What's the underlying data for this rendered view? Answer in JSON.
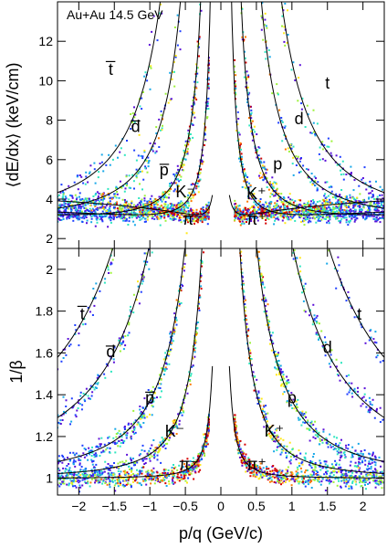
{
  "chart_data": [
    {
      "type": "heatmap",
      "title": "Au+Au 14.5 GeV",
      "xlabel": "p/q (GeV/c)",
      "ylabel": "⟨dE/dx⟩ (keV/cm)",
      "xlim": [
        -2.3,
        2.3
      ],
      "ylim": [
        1.5,
        14
      ],
      "xticks": [
        -2,
        -1.5,
        -1,
        -0.5,
        0,
        0.5,
        1,
        1.5,
        2
      ],
      "yticks": [
        2,
        4,
        6,
        8,
        10,
        12
      ],
      "xtick_labels": [],
      "ytick_labels": [
        "2",
        "4",
        "6",
        "8",
        "10",
        "12"
      ],
      "colormap": [
        "#5a10d8",
        "#1f3fff",
        "#17a8e8",
        "#2ee6c0",
        "#9cf23a",
        "#ffe81a",
        "#ff7a00",
        "#d40000"
      ],
      "band_color": "#000000",
      "bands": [
        {
          "name": "t",
          "mass": 2.809
        },
        {
          "name": "d",
          "mass": 1.876
        },
        {
          "name": "p",
          "mass": 0.938
        },
        {
          "name": "K",
          "mass": 0.494
        },
        {
          "name": "π",
          "mass": 0.14
        }
      ],
      "annotations": [
        {
          "text": "t̅",
          "x": -1.55,
          "y": 10.3
        },
        {
          "text": "d̅",
          "x": -1.2,
          "y": 7.4
        },
        {
          "text": "p̅",
          "x": -0.8,
          "y": 5.2
        },
        {
          "text": "K⁻",
          "x": -0.5,
          "y": 4.1
        },
        {
          "text": "π⁻",
          "x": -0.4,
          "y": 2.7
        },
        {
          "text": "t",
          "x": 1.5,
          "y": 9.6
        },
        {
          "text": "d",
          "x": 1.1,
          "y": 7.8
        },
        {
          "text": "p",
          "x": 0.8,
          "y": 5.5
        },
        {
          "text": "K⁺",
          "x": 0.5,
          "y": 4.0
        },
        {
          "text": "π⁺",
          "x": 0.5,
          "y": 2.7
        }
      ]
    },
    {
      "type": "heatmap",
      "xlabel": "p/q (GeV/c)",
      "ylabel": "1/β",
      "xlim": [
        -2.3,
        2.3
      ],
      "ylim": [
        0.92,
        2.1
      ],
      "xticks": [
        -2,
        -1.5,
        -1,
        -0.5,
        0,
        0.5,
        1,
        1.5,
        2
      ],
      "yticks": [
        1,
        1.2,
        1.4,
        1.6,
        1.8,
        2
      ],
      "xtick_labels": [
        "−2",
        "−1.5",
        "−1",
        "−0.5",
        "0",
        "0.5",
        "1",
        "1.5",
        "2"
      ],
      "ytick_labels": [
        "1",
        "1.2",
        "1.4",
        "1.6",
        "1.8",
        "2"
      ],
      "colormap": [
        "#5a10d8",
        "#1f3fff",
        "#17a8e8",
        "#2ee6c0",
        "#9cf23a",
        "#ffe81a",
        "#ff7a00",
        "#d40000"
      ],
      "band_color": "#000000",
      "bands": [
        {
          "name": "t",
          "mass": 2.809
        },
        {
          "name": "d",
          "mass": 1.876
        },
        {
          "name": "p",
          "mass": 0.938
        },
        {
          "name": "K",
          "mass": 0.494
        },
        {
          "name": "π",
          "mass": 0.14
        }
      ],
      "annotations": [
        {
          "text": "t̅",
          "x": -1.95,
          "y": 1.76
        },
        {
          "text": "d̅",
          "x": -1.55,
          "y": 1.58
        },
        {
          "text": "p̅",
          "x": -1.0,
          "y": 1.36
        },
        {
          "text": "K⁻",
          "x": -0.65,
          "y": 1.2
        },
        {
          "text": "π⁻",
          "x": -0.45,
          "y": 1.04
        },
        {
          "text": "t",
          "x": 1.95,
          "y": 1.76
        },
        {
          "text": "d",
          "x": 1.5,
          "y": 1.6
        },
        {
          "text": "p",
          "x": 1.0,
          "y": 1.36
        },
        {
          "text": "K⁺",
          "x": 0.75,
          "y": 1.2
        },
        {
          "text": "π⁺",
          "x": 0.5,
          "y": 1.04
        }
      ]
    }
  ]
}
